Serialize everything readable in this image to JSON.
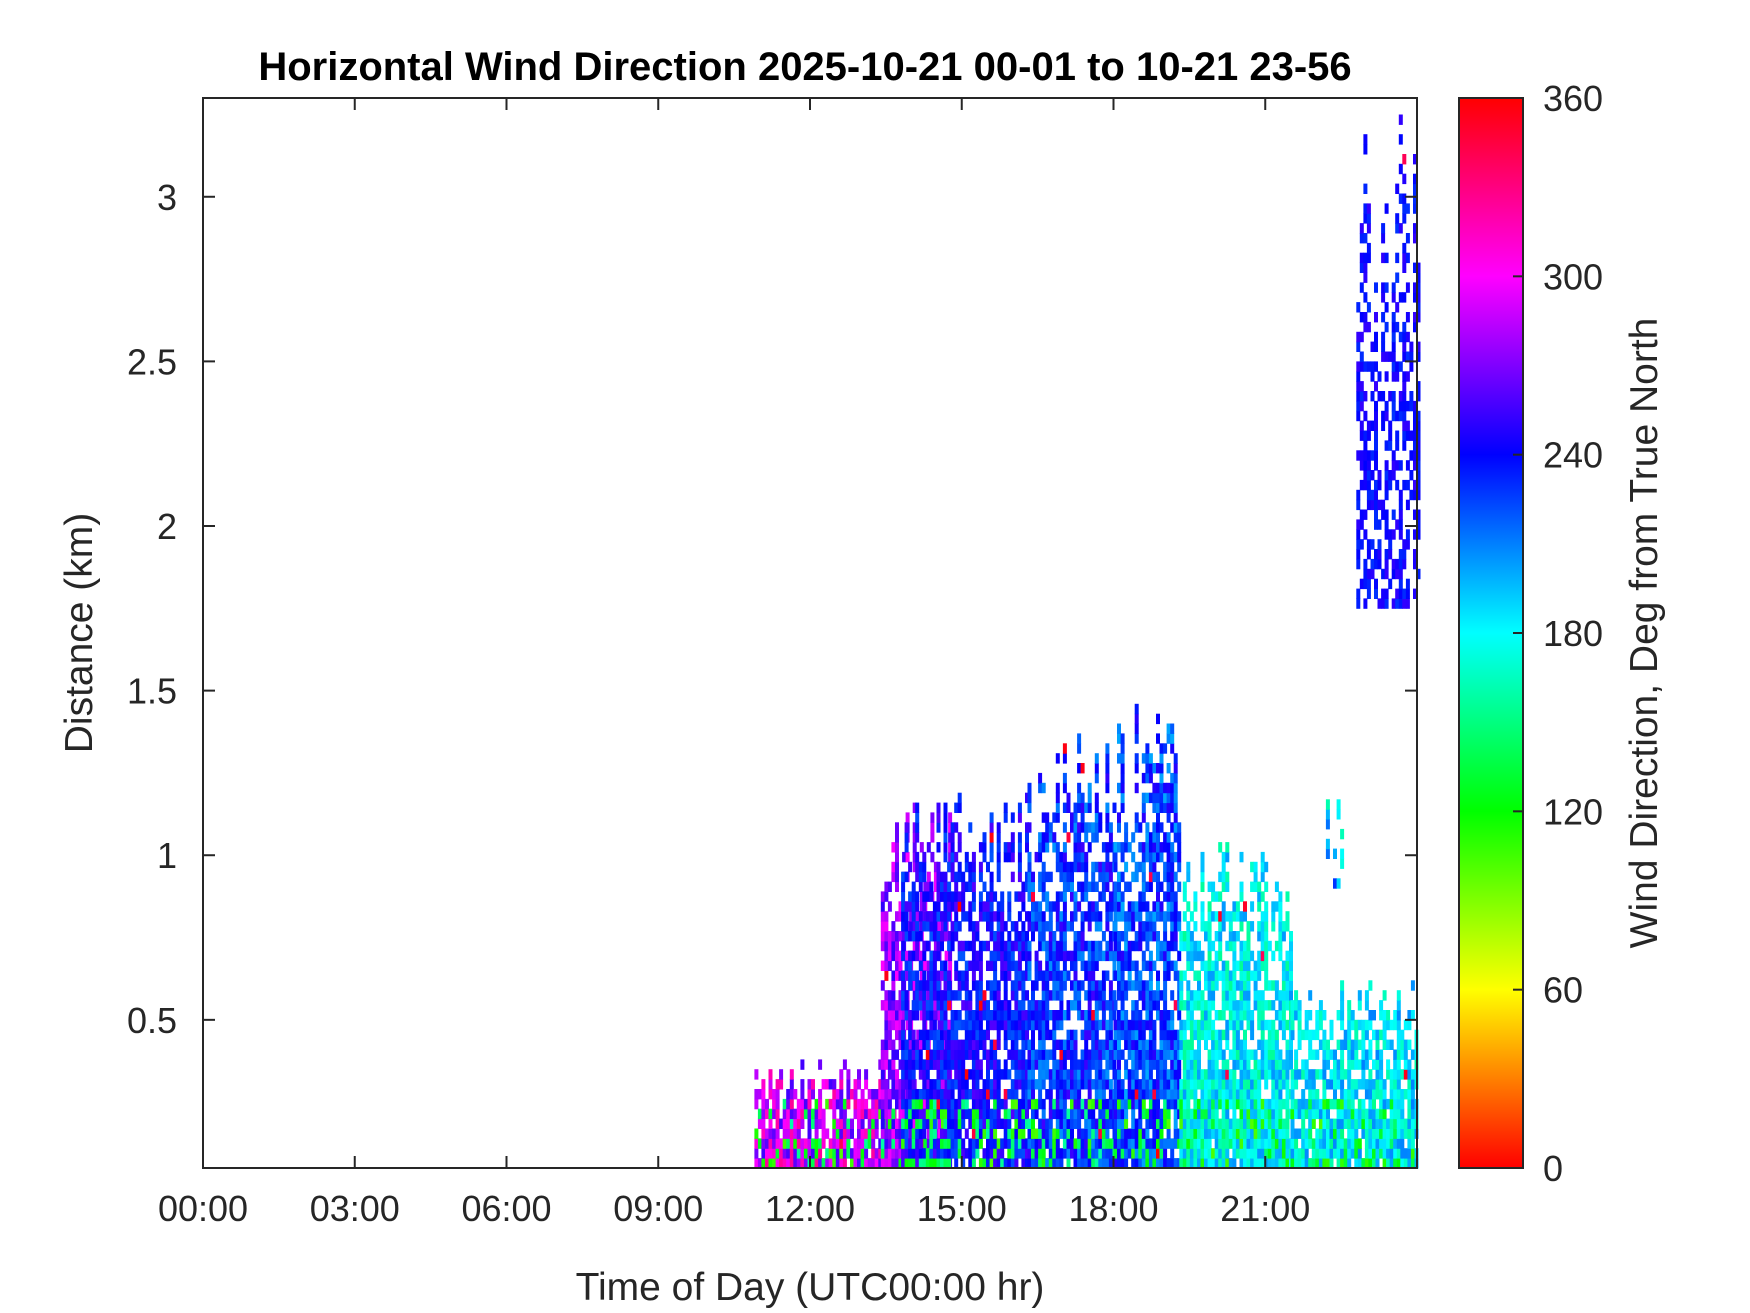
{
  "chart_data": {
    "type": "heatmap",
    "title": "Horizontal Wind Direction 2025-10-21 00-01 to 10-21 23-56",
    "xlabel": "Time of Day (UTC00:00 hr)",
    "ylabel": "Distance (km)",
    "colorbar_label": "Wind Direction, Deg from True North",
    "xlim_hours": [
      0,
      24
    ],
    "ylim_km": [
      0.05,
      3.3
    ],
    "x_ticks": [
      {
        "hour": 0,
        "label": "00:00"
      },
      {
        "hour": 3,
        "label": "03:00"
      },
      {
        "hour": 6,
        "label": "06:00"
      },
      {
        "hour": 9,
        "label": "09:00"
      },
      {
        "hour": 12,
        "label": "12:00"
      },
      {
        "hour": 15,
        "label": "15:00"
      },
      {
        "hour": 18,
        "label": "18:00"
      },
      {
        "hour": 21,
        "label": "21:00"
      }
    ],
    "y_ticks": [
      {
        "km": 0.5,
        "label": "0.5"
      },
      {
        "km": 1,
        "label": "1"
      },
      {
        "km": 1.5,
        "label": "1.5"
      },
      {
        "km": 2,
        "label": "2"
      },
      {
        "km": 2.5,
        "label": "2.5"
      },
      {
        "km": 3,
        "label": "3"
      }
    ],
    "colorbar": {
      "range_deg": [
        0,
        360
      ],
      "ticks": [
        {
          "deg": 0,
          "label": "0"
        },
        {
          "deg": 60,
          "label": "60"
        },
        {
          "deg": 120,
          "label": "120"
        },
        {
          "deg": 180,
          "label": "180"
        },
        {
          "deg": 240,
          "label": "240"
        },
        {
          "deg": 300,
          "label": "300"
        },
        {
          "deg": 360,
          "label": "360"
        }
      ],
      "colormap": "hsv",
      "colors": [
        "#ff0000",
        "#ffff00",
        "#00ff00",
        "#00ffff",
        "#0000ff",
        "#ff00ff",
        "#ff0000"
      ]
    },
    "data_regions": [
      {
        "t_start": 10.9,
        "t_end": 13.8,
        "h_top": 0.35,
        "direction_deg": 290,
        "spread_deg": 35
      },
      {
        "t_start": 13.4,
        "t_end": 14.8,
        "h_top": 1.1,
        "direction_deg": 275,
        "spread_deg": 25
      },
      {
        "t_start": 13.8,
        "t_end": 16.3,
        "h_top": 1.15,
        "direction_deg": 240,
        "spread_deg": 20
      },
      {
        "t_start": 16.3,
        "t_end": 18.0,
        "h_top": 1.3,
        "direction_deg": 230,
        "spread_deg": 25
      },
      {
        "t_start": 18.0,
        "t_end": 19.3,
        "h_top": 1.4,
        "direction_deg": 225,
        "spread_deg": 25
      },
      {
        "t_start": 19.3,
        "t_end": 21.5,
        "h_top": 1.0,
        "direction_deg": 180,
        "spread_deg": 25
      },
      {
        "t_start": 21.5,
        "t_end": 24.0,
        "h_top": 0.6,
        "direction_deg": 185,
        "spread_deg": 25
      },
      {
        "t_start": 22.8,
        "t_end": 24.0,
        "h_top": 3.25,
        "h_bottom": 1.75,
        "direction_deg": 240,
        "spread_deg": 12
      },
      {
        "t_start": 22.2,
        "t_end": 22.5,
        "h_top": 1.15,
        "h_bottom": 0.9,
        "direction_deg": 200,
        "spread_deg": 40
      }
    ]
  }
}
